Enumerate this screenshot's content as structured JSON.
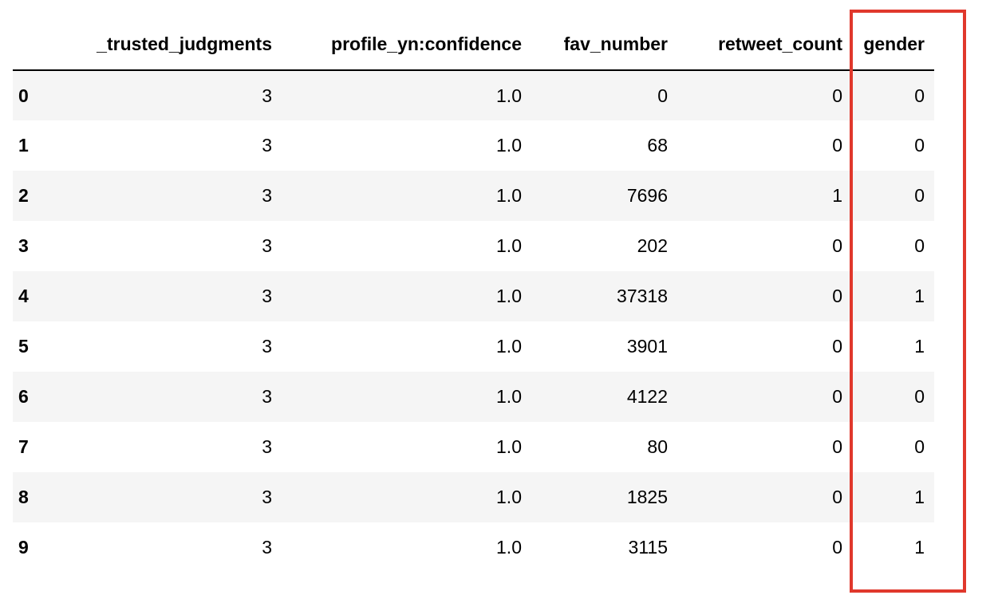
{
  "table": {
    "columns": [
      "",
      "_trusted_judgments",
      "profile_yn:confidence",
      "fav_number",
      "retweet_count",
      "gender"
    ],
    "rows": [
      {
        "index": "0",
        "cells": [
          "3",
          "1.0",
          "0",
          "0",
          "0"
        ]
      },
      {
        "index": "1",
        "cells": [
          "3",
          "1.0",
          "68",
          "0",
          "0"
        ]
      },
      {
        "index": "2",
        "cells": [
          "3",
          "1.0",
          "7696",
          "1",
          "0"
        ]
      },
      {
        "index": "3",
        "cells": [
          "3",
          "1.0",
          "202",
          "0",
          "0"
        ]
      },
      {
        "index": "4",
        "cells": [
          "3",
          "1.0",
          "37318",
          "0",
          "1"
        ]
      },
      {
        "index": "5",
        "cells": [
          "3",
          "1.0",
          "3901",
          "0",
          "1"
        ]
      },
      {
        "index": "6",
        "cells": [
          "3",
          "1.0",
          "4122",
          "0",
          "0"
        ]
      },
      {
        "index": "7",
        "cells": [
          "3",
          "1.0",
          "80",
          "0",
          "0"
        ]
      },
      {
        "index": "8",
        "cells": [
          "3",
          "1.0",
          "1825",
          "0",
          "1"
        ]
      },
      {
        "index": "9",
        "cells": [
          "3",
          "1.0",
          "3115",
          "0",
          "1"
        ]
      }
    ]
  },
  "highlight": {
    "column": "gender",
    "color": "#e0382c"
  },
  "colors": {
    "background": "#ffffff",
    "row_stripe": "#f5f5f5",
    "text": "#000000"
  }
}
